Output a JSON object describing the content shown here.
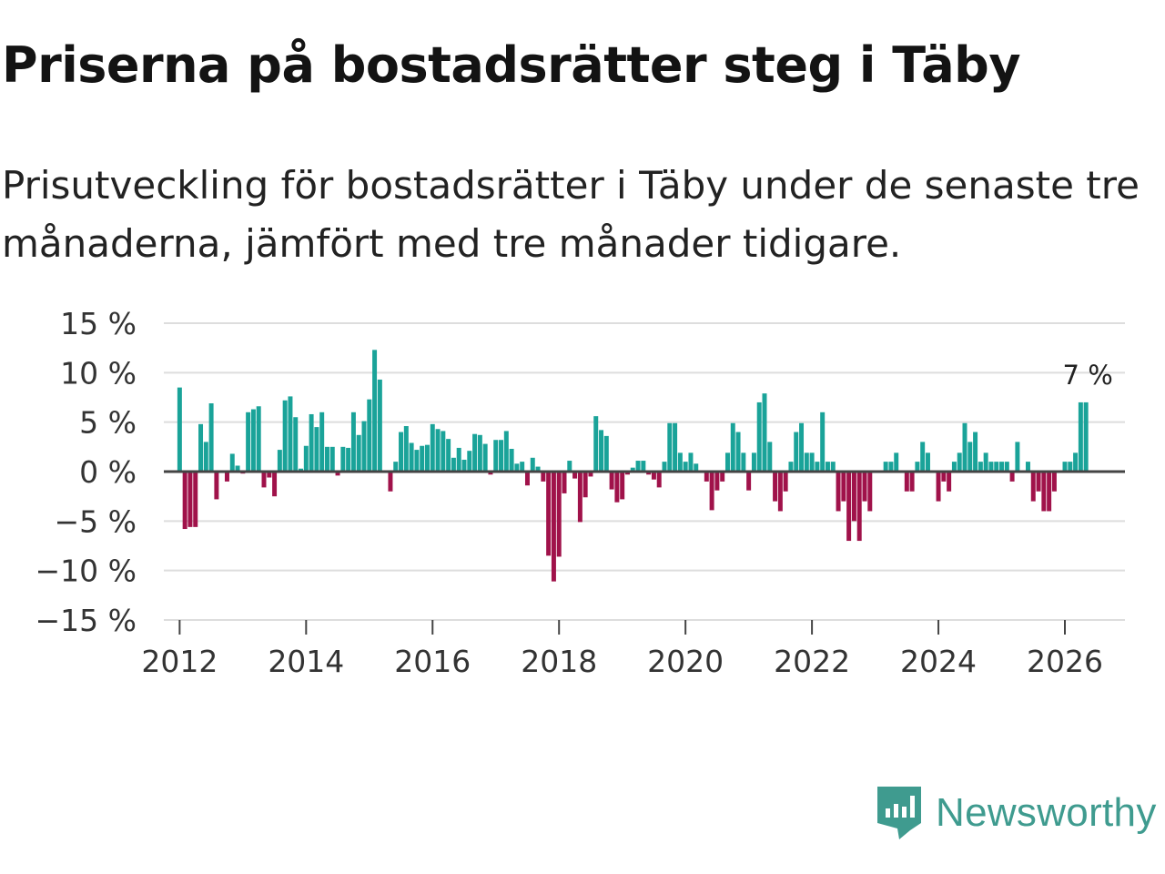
{
  "title": "Priserna på bostadsrätter steg i Täby",
  "subtitle": "Prisutveckling för bostadsrätter i Täby under de senaste tre månaderna, jämfört med tre månader tidigare.",
  "brand": {
    "name": "Newsworthy",
    "color": "#3f9b8f",
    "icon": "newsworthy-bar-chart-icon"
  },
  "colors": {
    "positive": "#1aa399",
    "negative": "#a0124a",
    "grid": "#dddddd",
    "zero": "#444444"
  },
  "chart_data": {
    "type": "bar",
    "title": "",
    "xlabel": "",
    "ylabel": "",
    "ylim": [
      -15,
      15
    ],
    "xlim": [
      2011.75,
      2026.95
    ],
    "y_ticks": [
      {
        "value": 15,
        "label": "15 %"
      },
      {
        "value": 10,
        "label": "10 %"
      },
      {
        "value": 5,
        "label": "5 %"
      },
      {
        "value": 0,
        "label": "0 %"
      },
      {
        "value": -5,
        "label": "−5 %"
      },
      {
        "value": -10,
        "label": "−10 %"
      },
      {
        "value": -15,
        "label": "−15 %"
      }
    ],
    "x_ticks": [
      "2012",
      "2014",
      "2016",
      "2018",
      "2020",
      "2022",
      "2024",
      "2026"
    ],
    "start": "2012-01",
    "frequency": "monthly",
    "values": [
      8.5,
      -5.8,
      -5.6,
      -5.6,
      4.8,
      3.0,
      6.9,
      -2.8,
      0,
      -1.0,
      1.8,
      0.6,
      -0.2,
      6.0,
      6.3,
      6.6,
      -1.6,
      -0.6,
      -2.5,
      2.2,
      7.2,
      7.6,
      5.5,
      0.3,
      2.6,
      5.8,
      4.5,
      6.0,
      2.5,
      2.5,
      -0.4,
      2.5,
      2.4,
      6.0,
      3.7,
      5.1,
      7.3,
      12.3,
      9.3,
      0,
      -2.0,
      1.0,
      4.0,
      4.6,
      2.9,
      2.2,
      2.6,
      2.7,
      4.8,
      4.3,
      4.1,
      3.3,
      1.4,
      2.4,
      1.2,
      2.1,
      3.8,
      3.7,
      2.8,
      -0.3,
      3.2,
      3.2,
      4.1,
      2.3,
      0.8,
      1.0,
      -1.4,
      1.4,
      0.5,
      -1.0,
      -8.5,
      -11.1,
      -8.6,
      -2.2,
      1.1,
      -0.7,
      -5.1,
      -2.6,
      -0.5,
      5.6,
      4.2,
      3.6,
      -1.8,
      -3.1,
      -2.8,
      -0.3,
      0.4,
      1.1,
      1.1,
      -0.3,
      -0.8,
      -1.6,
      1.0,
      4.9,
      4.9,
      1.9,
      1.0,
      1.9,
      0.8,
      0,
      -1.0,
      -3.9,
      -1.9,
      -1.0,
      1.9,
      4.9,
      4.0,
      1.9,
      -1.9,
      1.9,
      7.0,
      7.9,
      3.0,
      -3.0,
      -4.0,
      -2.0,
      1.0,
      4.0,
      4.9,
      1.9,
      1.9,
      1.0,
      6.0,
      1.0,
      1.0,
      -4.0,
      -3.0,
      -7.0,
      -5.0,
      -7.0,
      -3.0,
      -4.0,
      0,
      0,
      1.0,
      1.0,
      1.9,
      0,
      -2.0,
      -2.0,
      1.0,
      3.0,
      1.9,
      0,
      -3.0,
      -1.0,
      -2.0,
      1.0,
      1.9,
      4.9,
      3.0,
      4.0,
      1.0,
      1.9,
      1.0,
      1.0,
      1.0,
      1.0,
      -1.0,
      3.0,
      0,
      1.0,
      -3.0,
      -2.0,
      -4.0,
      -4.0,
      -2.0,
      0,
      1.0,
      1.0,
      1.9,
      7.0,
      7.0
    ],
    "annotations": [
      {
        "label": "7 %",
        "position": "last-bar-top"
      }
    ]
  }
}
